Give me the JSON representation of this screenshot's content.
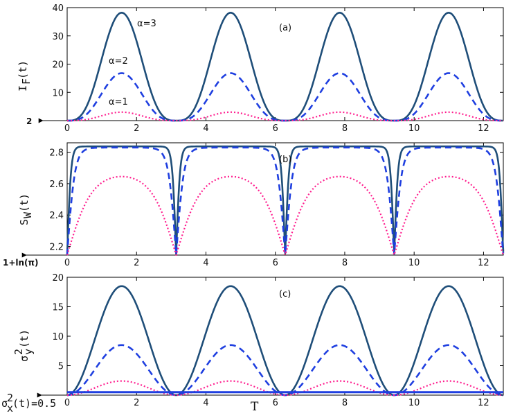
{
  "colors": {
    "alpha3": "#1f4e79",
    "alpha2": "#1f3fe0",
    "alpha1": "#ff1f8f",
    "axis": "#000000"
  },
  "chart_data": [
    {
      "panel": "(a)",
      "type": "line",
      "ylabel": "I_F(t)",
      "xlim": [
        0,
        12.57
      ],
      "ylim": [
        0,
        40
      ],
      "xticks": [
        "0",
        "2",
        "4",
        "6",
        "8",
        "10",
        "12"
      ],
      "yticks": [
        "10",
        "20",
        "30",
        "40"
      ],
      "annotations": [
        "α=3",
        "α=2",
        "α=1"
      ],
      "left_marker": "2",
      "series": [
        {
          "name": "α=3",
          "style": "solid",
          "peak": 38.2,
          "trough": 0.0
        },
        {
          "name": "α=2",
          "style": "dashed",
          "peak": 16.8,
          "trough": 0.0
        },
        {
          "name": "α=1",
          "style": "dotted",
          "peak": 3.0,
          "trough": 0.0
        }
      ]
    },
    {
      "panel": "(b)",
      "type": "line",
      "ylabel": "S_W(t)",
      "xlim": [
        0,
        12.57
      ],
      "ylim": [
        2.145,
        2.86
      ],
      "xticks": [
        "0",
        "2",
        "4",
        "6",
        "8",
        "10",
        "12"
      ],
      "yticks": [
        "2.2",
        "2.4",
        "2.6",
        "2.8"
      ],
      "left_marker": "1+ln(π)",
      "series": [
        {
          "name": "α=3",
          "style": "solid",
          "peak": 2.837,
          "trough": 2.145
        },
        {
          "name": "α=2",
          "style": "dashed",
          "peak": 2.83,
          "trough": 2.145
        },
        {
          "name": "α=1",
          "style": "dotted",
          "peak": 2.645,
          "trough": 2.145
        }
      ]
    },
    {
      "panel": "(c)",
      "type": "line",
      "ylabel": "σ²_y(t)",
      "xlabel": "T",
      "xlim": [
        0,
        12.57
      ],
      "ylim": [
        0,
        20
      ],
      "xticks": [
        "0",
        "2",
        "4",
        "6",
        "8",
        "10",
        "12"
      ],
      "yticks": [
        "5",
        "10",
        "15",
        "20"
      ],
      "left_marker": "σ²_x(t)=0.5",
      "series": [
        {
          "name": "α=3",
          "style": "solid",
          "peak": 18.5,
          "trough": 0.0
        },
        {
          "name": "α=2",
          "style": "dashed",
          "peak": 8.5,
          "trough": 0.0
        },
        {
          "name": "α=1",
          "style": "dotted",
          "peak": 2.4,
          "trough": 0.0
        },
        {
          "name": "σ²_x",
          "style": "solid-flat",
          "peak": 0.5,
          "trough": 0.5
        }
      ]
    }
  ],
  "labels": {
    "panel_a": "(a)",
    "panel_b": "(b)",
    "panel_c": "(c)",
    "a3": "α=3",
    "a2": "α=2",
    "a1": "α=1",
    "ylab_a_main": "I",
    "ylab_a_sub": "F",
    "ylab_a_tail": "(t)",
    "ylab_b_main": "S",
    "ylab_b_sub": "W",
    "ylab_b_tail": "(t)",
    "ylab_c_main": "σ",
    "ylab_c_sup": "2",
    "ylab_c_sub": "y",
    "ylab_c_tail": "(t)",
    "marker_a": "2",
    "marker_b": "1+ln(π)",
    "marker_c_main": "σ",
    "marker_c_sup": "2",
    "marker_c_sub": "x",
    "marker_c_tail": "(t)=0.5",
    "xlabel": "T"
  }
}
